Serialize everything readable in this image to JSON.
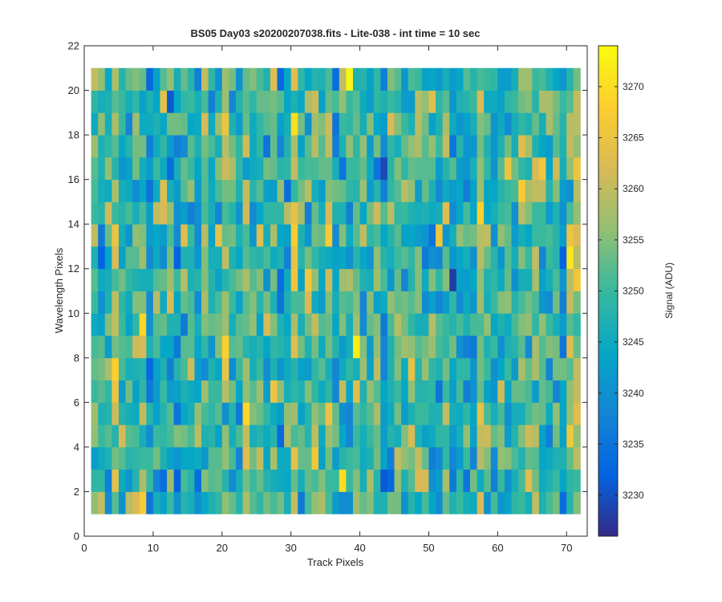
{
  "chart_data": {
    "type": "heatmap",
    "title": "BS05 Day03  s20200207038.fits - Lite-038 - int time = 10 sec",
    "xlabel": "Track Pixels",
    "ylabel": "Wavelength Pixels",
    "xlim": [
      0,
      73
    ],
    "ylim": [
      0,
      22
    ],
    "xticks": [
      0,
      10,
      20,
      30,
      40,
      50,
      60,
      70
    ],
    "yticks": [
      0,
      2,
      4,
      6,
      8,
      10,
      12,
      14,
      16,
      18,
      20,
      22
    ],
    "grid": false,
    "x_range": [
      1,
      72
    ],
    "y_range": [
      1,
      21
    ],
    "rows": 20,
    "cols": 71,
    "colorbar": {
      "label": "Signal (ADU)",
      "clim": [
        3226,
        3274
      ],
      "ticks": [
        3230,
        3235,
        3240,
        3245,
        3250,
        3255,
        3260,
        3265,
        3270
      ],
      "colormap": "parula",
      "colors": [
        "#352a87",
        "#0363e1",
        "#1485d4",
        "#06a7c6",
        "#38b99e",
        "#92bf73",
        "#d9ba56",
        "#fcce2e",
        "#f9fb0e"
      ]
    },
    "value_summary": {
      "mean": 3250,
      "typical_spread": 7,
      "min": 3227,
      "max": 3273
    },
    "values": []
  }
}
